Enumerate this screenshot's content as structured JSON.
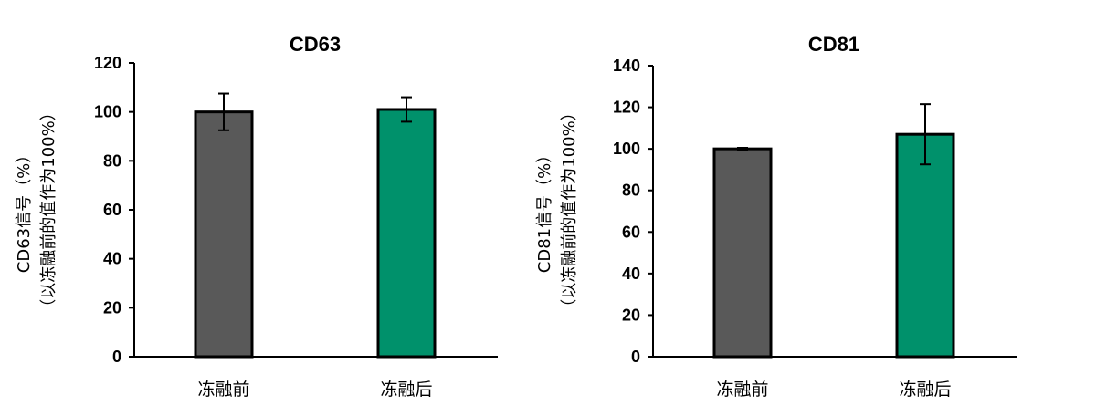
{
  "chart_data": [
    {
      "type": "bar",
      "title": "CD63",
      "ylabel": [
        "CD63信号（%）",
        "（以冻融前的值作为100%）"
      ],
      "xlabel": "",
      "categories": [
        "冻融前",
        "冻融后"
      ],
      "values": [
        100,
        101
      ],
      "errors": [
        7.5,
        5
      ],
      "colors": [
        "#595959",
        "#00916B"
      ],
      "ylim": [
        0,
        120
      ],
      "yticks": [
        0,
        20,
        40,
        60,
        80,
        100,
        120
      ],
      "grid": false
    },
    {
      "type": "bar",
      "title": "CD81",
      "ylabel": [
        "CD81信号（%）",
        "（以冻融前的值作为100%）"
      ],
      "xlabel": "",
      "categories": [
        "冻融前",
        "冻融后"
      ],
      "values": [
        100,
        107
      ],
      "errors": [
        0.5,
        14.5
      ],
      "colors": [
        "#595959",
        "#00916B"
      ],
      "ylim": [
        0,
        140
      ],
      "yticks": [
        0,
        20,
        40,
        60,
        80,
        100,
        120,
        140
      ],
      "grid": false
    }
  ]
}
